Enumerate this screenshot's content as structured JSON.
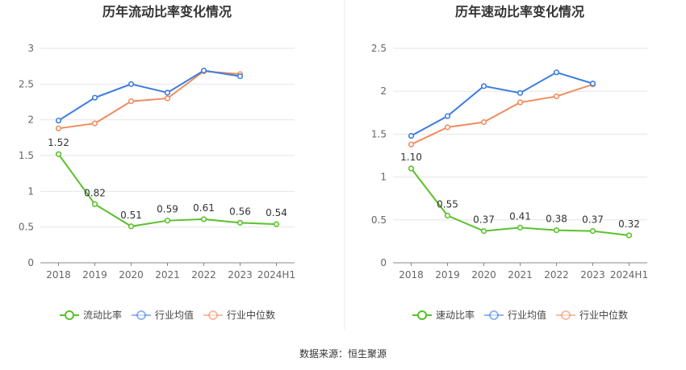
{
  "source": "数据来源：恒生聚源",
  "chart_data": [
    {
      "type": "line",
      "title": "历年流动比率变化情况",
      "categories": [
        "2018",
        "2019",
        "2020",
        "2021",
        "2022",
        "2023",
        "2024H1"
      ],
      "ylim": [
        0,
        3
      ],
      "yticks": [
        "0",
        "0.5",
        "1",
        "1.5",
        "2",
        "2.5",
        "3"
      ],
      "grid": true,
      "legend": "bottom",
      "series": [
        {
          "name": "流动比率",
          "color": "#5ac12a",
          "values": [
            1.52,
            0.82,
            0.51,
            0.59,
            0.61,
            0.56,
            0.54
          ],
          "labels": [
            "1.52",
            "0.82",
            "0.51",
            "0.59",
            "0.61",
            "0.56",
            "0.54"
          ]
        },
        {
          "name": "行业均值",
          "color": "#3b7ddd",
          "values": [
            1.99,
            2.31,
            2.5,
            2.38,
            2.69,
            2.61,
            null
          ]
        },
        {
          "name": "行业中位数",
          "color": "#f08c5e",
          "values": [
            1.88,
            1.95,
            2.26,
            2.3,
            2.68,
            2.64,
            null
          ]
        }
      ]
    },
    {
      "type": "line",
      "title": "历年速动比率变化情况",
      "categories": [
        "2018",
        "2019",
        "2020",
        "2021",
        "2022",
        "2023",
        "2024H1"
      ],
      "ylim": [
        0,
        2.5
      ],
      "yticks": [
        "0",
        "0.5",
        "1",
        "1.5",
        "2",
        "2.5"
      ],
      "grid": true,
      "legend": "bottom",
      "series": [
        {
          "name": "速动比率",
          "color": "#5ac12a",
          "values": [
            1.1,
            0.55,
            0.37,
            0.41,
            0.38,
            0.37,
            0.32
          ],
          "labels": [
            "1.10",
            "0.55",
            "0.37",
            "0.41",
            "0.38",
            "0.37",
            "0.32"
          ]
        },
        {
          "name": "行业均值",
          "color": "#3b7ddd",
          "values": [
            1.48,
            1.71,
            2.06,
            1.98,
            2.22,
            2.09,
            null
          ]
        },
        {
          "name": "行业中位数",
          "color": "#f08c5e",
          "values": [
            1.38,
            1.58,
            1.64,
            1.87,
            1.94,
            2.08,
            null
          ]
        }
      ]
    }
  ]
}
